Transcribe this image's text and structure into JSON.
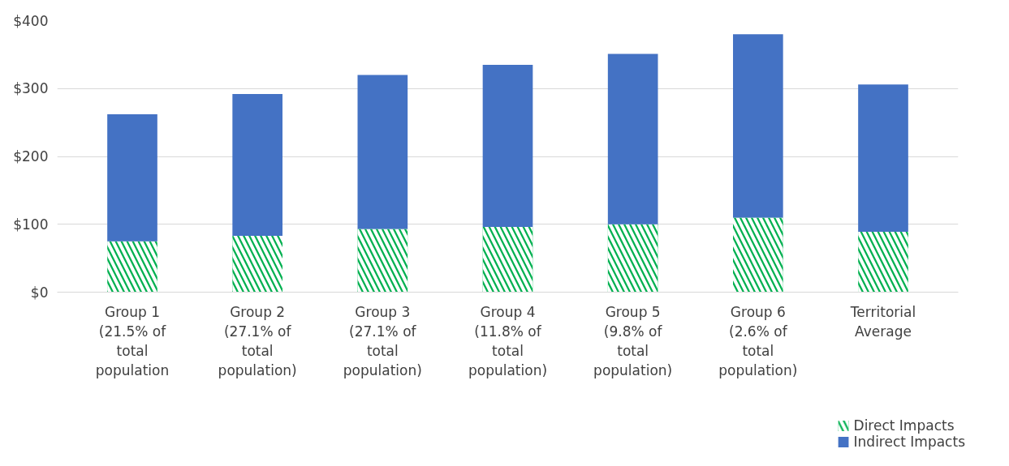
{
  "chart_data": {
    "type": "bar",
    "stacked": true,
    "categories": [
      "Group 1\n(21.5% of\ntotal\npopulation",
      "Group 2\n(27.1% of\ntotal\npopulation)",
      "Group 3\n(27.1% of\ntotal\npopulation)",
      "Group 4\n(11.8% of\ntotal\npopulation)",
      "Group 5\n(9.8% of\ntotal\npopulation)",
      "Group 6\n(2.6% of\ntotal\npopulation)",
      "Territorial\nAverage"
    ],
    "series": [
      {
        "name": "Direct Impacts",
        "color": "#00b050",
        "values": [
          75,
          83,
          93,
          96,
          100,
          110,
          89
        ]
      },
      {
        "name": "Indirect Impacts",
        "color": "#4472c4",
        "values": [
          187,
          209,
          227,
          239,
          251,
          270,
          217
        ]
      }
    ],
    "ylim": [
      0,
      400
    ],
    "yticks": [
      {
        "value": 0,
        "label": "$0"
      },
      {
        "value": 100,
        "label": "$100"
      },
      {
        "value": 200,
        "label": "$200"
      },
      {
        "value": 300,
        "label": "$300"
      },
      {
        "value": 400,
        "label": "$400"
      }
    ],
    "grid": "y",
    "legend": "bottom right"
  }
}
